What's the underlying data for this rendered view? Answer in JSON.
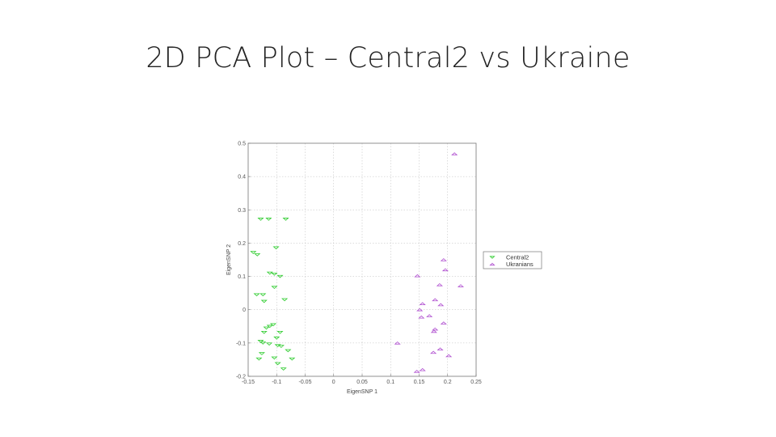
{
  "slide": {
    "title": "2D PCA Plot – Central2 vs Ukraine"
  },
  "chart_data": {
    "type": "scatter",
    "xlabel": "EigenSNP 1",
    "ylabel": "EigenSNP 2",
    "xlim": [
      -0.15,
      0.25
    ],
    "ylim": [
      -0.2,
      0.5
    ],
    "xticks": [
      -0.15,
      -0.1,
      -0.05,
      0,
      0.05,
      0.1,
      0.15,
      0.2,
      0.25
    ],
    "xtick_labels": [
      "-0.15",
      "-0.1",
      "-0.05",
      "0",
      "0.05",
      "0.1",
      "0.15",
      "0.2",
      "0.25"
    ],
    "yticks": [
      -0.2,
      -0.1,
      0,
      0.1,
      0.2,
      0.3,
      0.4,
      0.5
    ],
    "ytick_labels": [
      "-0.2",
      "-0.1",
      "0",
      "0.1",
      "0.2",
      "0.3",
      "0.4",
      "0.5"
    ],
    "grid": true,
    "legend_position": "right, outside plot",
    "series": [
      {
        "name": "Central2",
        "color": "#2ecc2e",
        "marker": "triangle-down",
        "points": [
          [
            -0.128,
            0.272
          ],
          [
            -0.114,
            0.272
          ],
          [
            -0.084,
            0.272
          ],
          [
            -0.101,
            0.186
          ],
          [
            -0.141,
            0.172
          ],
          [
            -0.134,
            0.165
          ],
          [
            -0.112,
            0.11
          ],
          [
            -0.104,
            0.107
          ],
          [
            -0.094,
            0.1
          ],
          [
            -0.104,
            0.067
          ],
          [
            -0.135,
            0.045
          ],
          [
            -0.124,
            0.045
          ],
          [
            -0.122,
            0.025
          ],
          [
            -0.086,
            0.03
          ],
          [
            -0.112,
            -0.05
          ],
          [
            -0.106,
            -0.045
          ],
          [
            -0.118,
            -0.055
          ],
          [
            -0.122,
            -0.068
          ],
          [
            -0.094,
            -0.068
          ],
          [
            -0.1,
            -0.085
          ],
          [
            -0.128,
            -0.095
          ],
          [
            -0.124,
            -0.1
          ],
          [
            -0.113,
            -0.103
          ],
          [
            -0.098,
            -0.108
          ],
          [
            -0.092,
            -0.11
          ],
          [
            -0.08,
            -0.123
          ],
          [
            -0.126,
            -0.132
          ],
          [
            -0.131,
            -0.148
          ],
          [
            -0.104,
            -0.145
          ],
          [
            -0.073,
            -0.148
          ],
          [
            -0.098,
            -0.162
          ],
          [
            -0.088,
            -0.178
          ]
        ]
      },
      {
        "name": "Ukranians",
        "color": "#b050d0",
        "marker": "triangle-up",
        "points": [
          [
            0.212,
            0.468
          ],
          [
            0.193,
            0.15
          ],
          [
            0.196,
            0.12
          ],
          [
            0.147,
            0.102
          ],
          [
            0.186,
            0.075
          ],
          [
            0.223,
            0.072
          ],
          [
            0.178,
            0.03
          ],
          [
            0.156,
            0.018
          ],
          [
            0.188,
            0.015
          ],
          [
            0.151,
            0.0
          ],
          [
            0.168,
            -0.018
          ],
          [
            0.154,
            -0.022
          ],
          [
            0.193,
            -0.04
          ],
          [
            0.178,
            -0.058
          ],
          [
            0.176,
            -0.065
          ],
          [
            0.112,
            -0.1
          ],
          [
            0.187,
            -0.118
          ],
          [
            0.175,
            -0.128
          ],
          [
            0.202,
            -0.138
          ],
          [
            0.156,
            -0.18
          ],
          [
            0.146,
            -0.185
          ]
        ]
      }
    ]
  }
}
